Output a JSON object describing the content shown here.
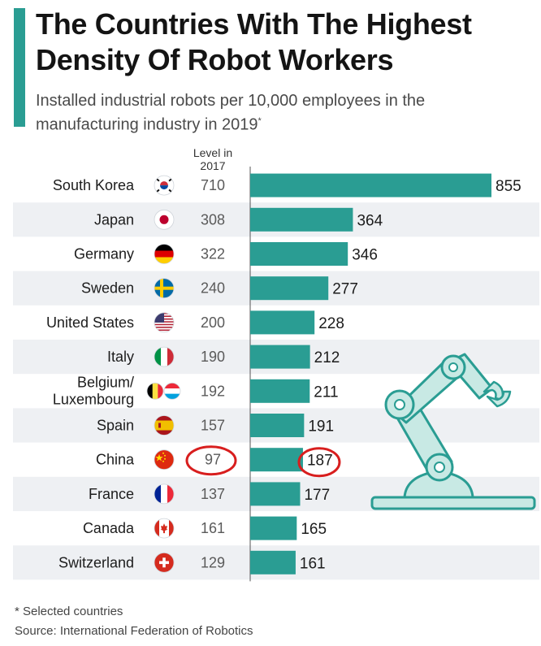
{
  "header": {
    "title": "The Countries With The Highest Density Of Robot Workers",
    "subtitle": "Installed industrial robots per 10,000 employees in the manufacturing industry in 2019",
    "subtitle_mark": "*",
    "column_header": "Level in 2017"
  },
  "colors": {
    "accent": "#2a9d93",
    "bar": "#2a9d93",
    "row_stripe": "#eef0f3",
    "highlight": "#d81e1e",
    "robot_fill": "#c8e9e4",
    "robot_stroke": "#2a9d93"
  },
  "chart_data": {
    "type": "bar",
    "orientation": "horizontal",
    "categories": [
      "South Korea",
      "Japan",
      "Germany",
      "Sweden",
      "United States",
      "Italy",
      "Belgium/ Luxembourg",
      "Spain",
      "China",
      "France",
      "Canada",
      "Switzerland"
    ],
    "values": [
      855,
      364,
      346,
      277,
      228,
      212,
      211,
      191,
      187,
      177,
      165,
      161
    ],
    "level_2017": [
      710,
      308,
      322,
      240,
      200,
      190,
      192,
      157,
      97,
      137,
      161,
      129
    ],
    "flags": [
      "south-korea-flag-icon",
      "japan-flag-icon",
      "germany-flag-icon",
      "sweden-flag-icon",
      "united-states-flag-icon",
      "italy-flag-icon",
      "belgium-luxembourg-flag-icon",
      "spain-flag-icon",
      "china-flag-icon",
      "france-flag-icon",
      "canada-flag-icon",
      "switzerland-flag-icon"
    ],
    "highlighted_category": "China",
    "xlim": [
      0,
      855
    ],
    "grid": false,
    "legend": "none"
  },
  "footer": {
    "footnote": "* Selected countries",
    "source": "Source: International Federation of Robotics"
  }
}
